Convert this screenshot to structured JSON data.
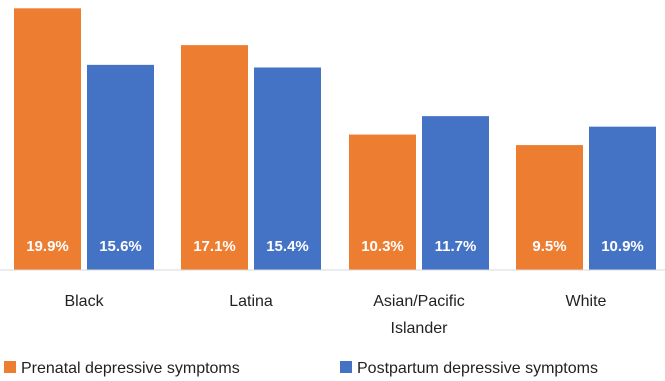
{
  "chart_data": {
    "type": "bar",
    "title": "",
    "xlabel": "",
    "ylabel": "",
    "ylim": [
      0,
      20
    ],
    "grid": false,
    "legend_position": "bottom",
    "categories": [
      [
        "Black"
      ],
      [
        "Latina"
      ],
      [
        "Asian/Pacific",
        "Islander"
      ],
      [
        "White"
      ]
    ],
    "series": [
      {
        "name": "Prenatal depressive symptoms",
        "color": "#ED7D31",
        "values": [
          19.9,
          17.1,
          10.3,
          9.5
        ],
        "labels": [
          "19.9%",
          "17.1%",
          "10.3%",
          "9.5%"
        ]
      },
      {
        "name": "Postpartum depressive symptoms",
        "color": "#4472C4",
        "values": [
          15.6,
          15.4,
          11.7,
          10.9
        ],
        "labels": [
          "15.6%",
          "15.4%",
          "11.7%",
          "10.9%"
        ]
      }
    ]
  }
}
